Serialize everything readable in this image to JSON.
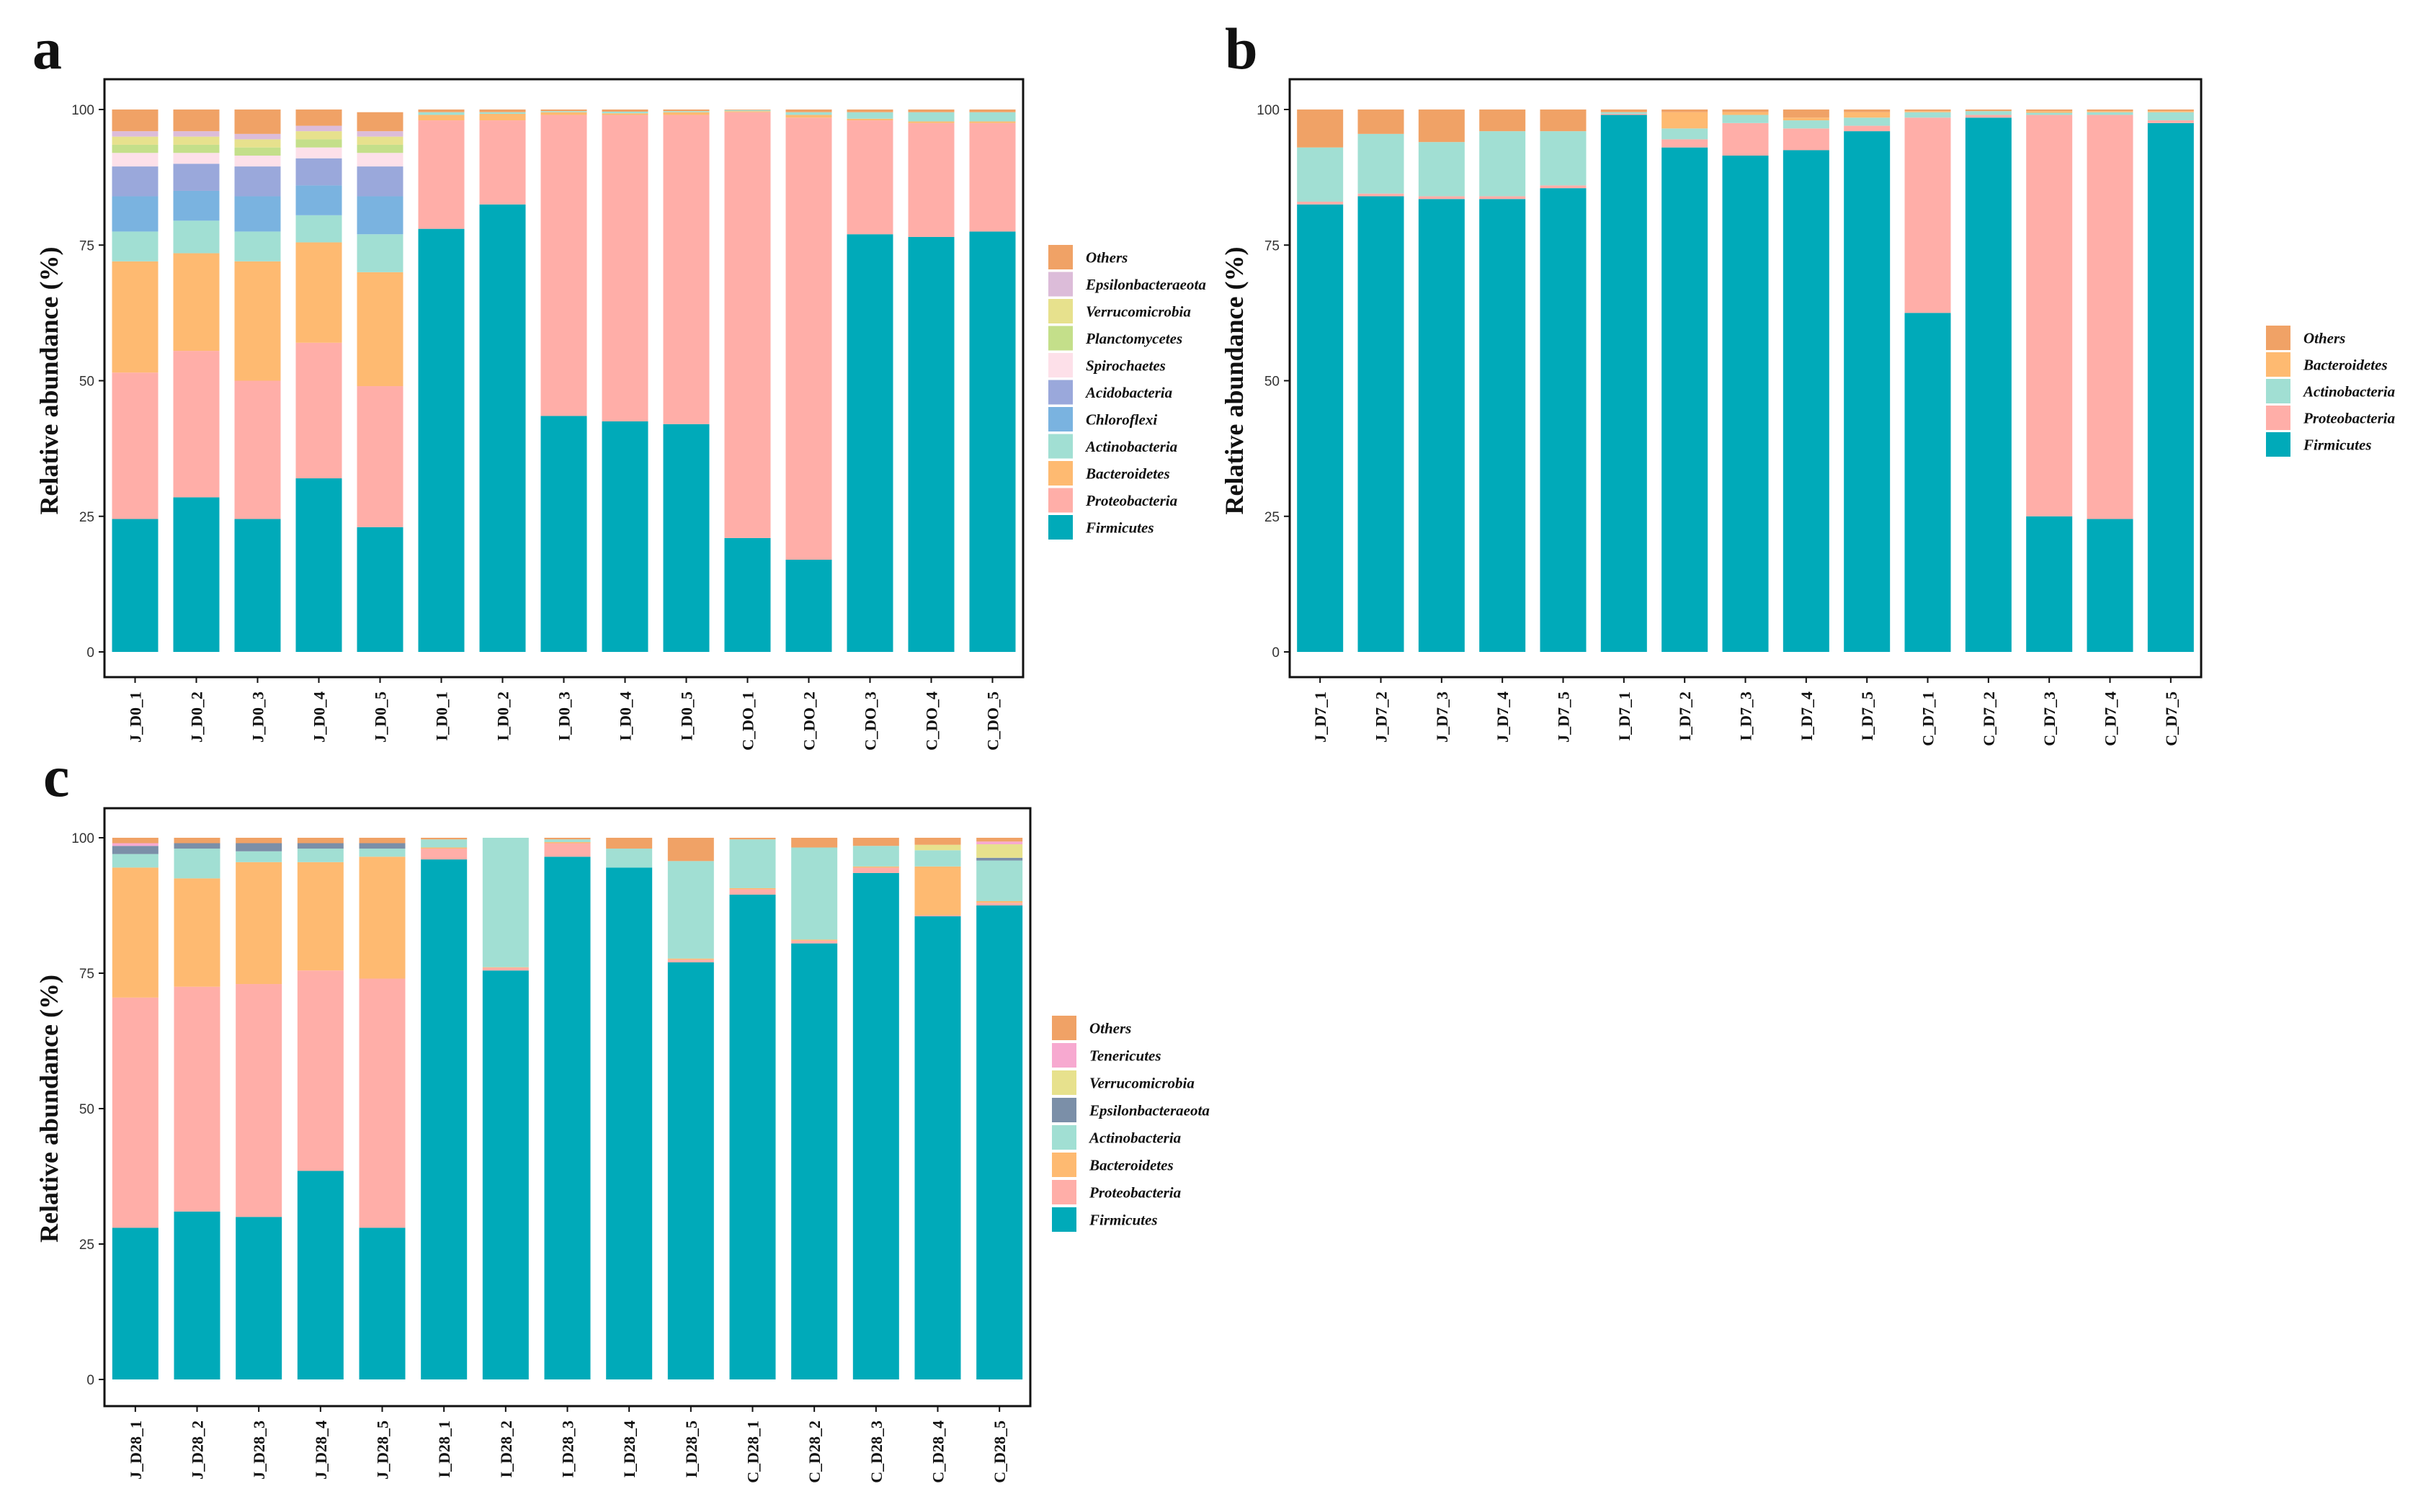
{
  "colors": {
    "Firmicutes": "#00aab9",
    "Proteobacteria": "#ffaea8",
    "Bacteroidetes": "#feba71",
    "Actinobacteria": "#a1dfd3",
    "Chloroflexi": "#7ab3e0",
    "Acidobacteria": "#9aa8db",
    "Spirochaetes": "#fde0e9",
    "Planctomycetes": "#c4df8a",
    "Verrucomicrobia": "#e7e18d",
    "Epsilonbacteraeota": "#dcbcd9",
    "Epsilonbacteraeota_c": "#7b8fa8",
    "Tenericutes": "#f7a9d0",
    "Others": "#f0a266"
  },
  "chart_data": [
    {
      "id": "a",
      "type": "bar",
      "stacked": true,
      "panel_label": "a",
      "ylabel": "Relative abundance (%)",
      "ylim": [
        0,
        100
      ],
      "yticks": [
        0,
        25,
        50,
        75,
        100
      ],
      "legend_position": "right",
      "legend_order": [
        "Others",
        "Epsilonbacteraeota",
        "Verrucomicrobia",
        "Planctomycetes",
        "Spirochaetes",
        "Acidobacteria",
        "Chloroflexi",
        "Actinobacteria",
        "Bacteroidetes",
        "Proteobacteria",
        "Firmicutes"
      ],
      "categories": [
        "J_D0_1",
        "J_D0_2",
        "J_D0_3",
        "J_D0_4",
        "J_D0_5",
        "I_D0_1",
        "I_D0_2",
        "I_D0_3",
        "I_D0_4",
        "I_D0_5",
        "C_DO_1",
        "C_DO_2",
        "C_DO_3",
        "C_DO_4",
        "C_DO_5"
      ],
      "series": [
        {
          "name": "Firmicutes",
          "color_key": "Firmicutes",
          "values": [
            24.5,
            28.5,
            24.5,
            32,
            23,
            78,
            82.5,
            43.5,
            42.5,
            42,
            21,
            17,
            77,
            76.5,
            77.5
          ]
        },
        {
          "name": "Proteobacteria",
          "color_key": "Proteobacteria",
          "values": [
            27,
            27,
            25.5,
            25,
            26,
            20,
            15.5,
            55.5,
            56.5,
            57,
            78.5,
            81.5,
            21,
            21,
            20
          ]
        },
        {
          "name": "Bacteroidetes",
          "color_key": "Bacteroidetes",
          "values": [
            20.5,
            18,
            22,
            18.5,
            21,
            1,
            1.2,
            0.5,
            0.3,
            0.5,
            0.2,
            0.5,
            0.3,
            0.3,
            0.3
          ]
        },
        {
          "name": "Actinobacteria",
          "color_key": "Actinobacteria",
          "values": [
            5.5,
            6,
            5.5,
            5,
            7,
            0.5,
            0.3,
            0.2,
            0.3,
            0.2,
            0.2,
            0.5,
            1.2,
            1.7,
            1.7
          ]
        },
        {
          "name": "Chloroflexi",
          "color_key": "Chloroflexi",
          "values": [
            6.5,
            5.5,
            6.5,
            5.5,
            7,
            0,
            0,
            0,
            0,
            0,
            0,
            0,
            0,
            0,
            0
          ]
        },
        {
          "name": "Acidobacteria",
          "color_key": "Acidobacteria",
          "values": [
            5.5,
            5,
            5.5,
            5,
            5.5,
            0,
            0,
            0,
            0,
            0,
            0,
            0,
            0,
            0,
            0
          ]
        },
        {
          "name": "Spirochaetes",
          "color_key": "Spirochaetes",
          "values": [
            2.5,
            2,
            2,
            2,
            2.5,
            0,
            0,
            0,
            0,
            0,
            0,
            0,
            0,
            0,
            0
          ]
        },
        {
          "name": "Planctomycetes",
          "color_key": "Planctomycetes",
          "values": [
            1.5,
            1.5,
            1.5,
            1.5,
            1.5,
            0,
            0,
            0,
            0,
            0,
            0,
            0,
            0,
            0,
            0
          ]
        },
        {
          "name": "Verrucomicrobia",
          "color_key": "Verrucomicrobia",
          "values": [
            1.5,
            1.5,
            1.5,
            1.5,
            1.5,
            0,
            0,
            0,
            0,
            0,
            0,
            0,
            0,
            0,
            0
          ]
        },
        {
          "name": "Epsilonbacteraeota",
          "color_key": "Epsilonbacteraeota",
          "values": [
            1,
            1,
            1,
            1,
            1,
            0,
            0,
            0,
            0,
            0,
            0,
            0,
            0,
            0,
            0
          ]
        },
        {
          "name": "Others",
          "color_key": "Others",
          "values": [
            4,
            4,
            4.5,
            3,
            3.5,
            0.5,
            0.5,
            0.3,
            0.4,
            0.3,
            0.1,
            0.5,
            0.5,
            0.5,
            0.5
          ]
        }
      ]
    },
    {
      "id": "b",
      "type": "bar",
      "stacked": true,
      "panel_label": "b",
      "ylabel": "Relative abundance (%)",
      "ylim": [
        0,
        100
      ],
      "yticks": [
        0,
        25,
        50,
        75,
        100
      ],
      "legend_position": "right",
      "legend_order": [
        "Others",
        "Bacteroidetes",
        "Actinobacteria",
        "Proteobacteria",
        "Firmicutes"
      ],
      "categories": [
        "J_D7_1",
        "J_D7_2",
        "J_D7_3",
        "J_D7_4",
        "J_D7_5",
        "I_D7_1",
        "I_D7_2",
        "I_D7_3",
        "I_D7_4",
        "I_D7_5",
        "C_D7_1",
        "C_D7_2",
        "C_D7_3",
        "C_D7_4",
        "C_D7_5"
      ],
      "series": [
        {
          "name": "Firmicutes",
          "color_key": "Firmicutes",
          "values": [
            82.5,
            84,
            83.5,
            83.5,
            85.5,
            99,
            93,
            91.5,
            92.5,
            96,
            62.5,
            98.5,
            25,
            24.5,
            97.5
          ]
        },
        {
          "name": "Proteobacteria",
          "color_key": "Proteobacteria",
          "values": [
            0.5,
            0.5,
            0.5,
            0.5,
            0.5,
            0.2,
            1.5,
            6,
            4,
            1,
            36,
            0.5,
            74,
            74.5,
            0.5
          ]
        },
        {
          "name": "Actinobacteria",
          "color_key": "Actinobacteria",
          "values": [
            10,
            11,
            10,
            12,
            10,
            0.3,
            2,
            1.5,
            1.5,
            1.5,
            1,
            0.7,
            0.4,
            0.5,
            1.5
          ]
        },
        {
          "name": "Bacteroidetes",
          "color_key": "Bacteroidetes",
          "values": [
            0,
            0,
            0,
            0,
            0,
            0,
            3,
            0.5,
            0.5,
            1,
            0.2,
            0,
            0.3,
            0.2,
            0.2
          ]
        },
        {
          "name": "Others",
          "color_key": "Others",
          "values": [
            7,
            4.5,
            6,
            4,
            4,
            0.5,
            0.5,
            0.5,
            1.5,
            0.5,
            0.3,
            0.3,
            0.3,
            0.3,
            0.3
          ]
        }
      ]
    },
    {
      "id": "c",
      "type": "bar",
      "stacked": true,
      "panel_label": "c",
      "ylabel": "Relative abundance (%)",
      "ylim": [
        0,
        100
      ],
      "yticks": [
        0,
        25,
        50,
        75,
        100
      ],
      "legend_position": "right",
      "legend_order": [
        "Others",
        "Tenericutes",
        "Verrucomicrobia",
        "Epsilonbacteraeota",
        "Actinobacteria",
        "Bacteroidetes",
        "Proteobacteria",
        "Firmicutes"
      ],
      "categories": [
        "J_D28_1",
        "J_D28_2",
        "J_D28_3",
        "J_D28_4",
        "J_D28_5",
        "I_D28_1",
        "I_D28_2",
        "I_D28_3",
        "I_D28_4",
        "I_D28_5",
        "C_D28_1",
        "C_D28_2",
        "C_D28_3",
        "C_D28_4",
        "C_D28_5"
      ],
      "series": [
        {
          "name": "Firmicutes",
          "color_key": "Firmicutes",
          "values": [
            28,
            31,
            30,
            38.5,
            28,
            96,
            75.5,
            96.5,
            94.5,
            77,
            89.5,
            80.5,
            93.5,
            85.5,
            87.5
          ]
        },
        {
          "name": "Proteobacteria",
          "color_key": "Proteobacteria",
          "values": [
            42.5,
            41.5,
            43,
            37,
            46,
            2,
            0.5,
            2.5,
            0,
            0.5,
            1,
            0.5,
            1,
            0.2,
            0.5
          ]
        },
        {
          "name": "Bacteroidetes",
          "color_key": "Bacteroidetes",
          "values": [
            24,
            20,
            22.5,
            20,
            22.5,
            0.2,
            0.1,
            0.2,
            0,
            0.2,
            0.2,
            0.2,
            0.2,
            9,
            0.3
          ]
        },
        {
          "name": "Actinobacteria",
          "color_key": "Actinobacteria",
          "values": [
            2.5,
            5.5,
            2,
            2.5,
            1.5,
            1.5,
            23.9,
            0.5,
            3.5,
            18,
            9,
            17,
            3.8,
            3,
            7.5
          ]
        },
        {
          "name": "Epsilonbacteraeota",
          "color_key": "Epsilonbacteraeota_c",
          "values": [
            1.5,
            1,
            1.5,
            1,
            1,
            0,
            0,
            0,
            0,
            0,
            0,
            0,
            0,
            0,
            0.5
          ]
        },
        {
          "name": "Verrucomicrobia",
          "color_key": "Verrucomicrobia",
          "values": [
            0,
            0,
            0,
            0,
            0,
            0,
            0,
            0,
            0,
            0,
            0,
            0,
            0,
            1,
            2.5
          ]
        },
        {
          "name": "Tenericutes",
          "color_key": "Tenericutes",
          "values": [
            0.5,
            0,
            0,
            0,
            0,
            0,
            0,
            0,
            0,
            0,
            0,
            0,
            0,
            0,
            0.5
          ]
        },
        {
          "name": "Others",
          "color_key": "Others",
          "values": [
            1,
            1,
            1,
            1,
            1,
            0.3,
            0,
            0.3,
            2,
            4.3,
            0.3,
            1.8,
            1.5,
            1.3,
            0.7
          ]
        }
      ]
    }
  ]
}
